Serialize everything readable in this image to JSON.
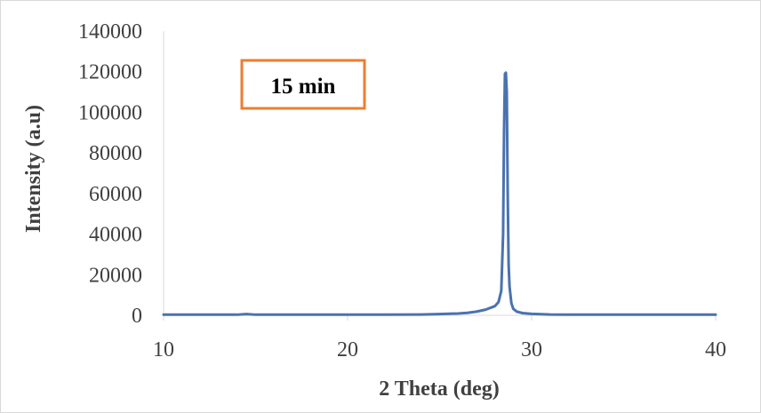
{
  "chart_data": {
    "type": "line",
    "title": "",
    "xlabel": "2 Theta (deg)",
    "ylabel": "Intensity (a.u)",
    "xlim": [
      10,
      40
    ],
    "ylim": [
      0,
      140000
    ],
    "x_ticks": [
      10,
      20,
      30,
      40
    ],
    "y_ticks": [
      0,
      20000,
      40000,
      60000,
      80000,
      100000,
      120000,
      140000
    ],
    "grid": false,
    "legend": "none",
    "annotation": {
      "text": "15 min",
      "border_color": "#ed7d31",
      "placement": "top-left"
    },
    "series": [
      {
        "color": "#4a72b0",
        "x": [
          10,
          12,
          14,
          14.5,
          15,
          16,
          18,
          20,
          22,
          24,
          25,
          26,
          26.5,
          27,
          27.5,
          28,
          28.2,
          28.35,
          28.45,
          28.5,
          28.55,
          28.6,
          28.65,
          28.7,
          28.75,
          28.8,
          28.9,
          29.0,
          29.2,
          29.5,
          30,
          31,
          32,
          34,
          36,
          38,
          40
        ],
        "y": [
          300,
          300,
          300,
          600,
          300,
          300,
          300,
          300,
          300,
          400,
          600,
          900,
          1200,
          1800,
          2800,
          4500,
          6500,
          12000,
          40000,
          90000,
          119000,
          119500,
          110000,
          60000,
          25000,
          14000,
          6000,
          3200,
          1800,
          1100,
          700,
          400,
          300,
          300,
          300,
          300,
          300
        ]
      }
    ]
  }
}
